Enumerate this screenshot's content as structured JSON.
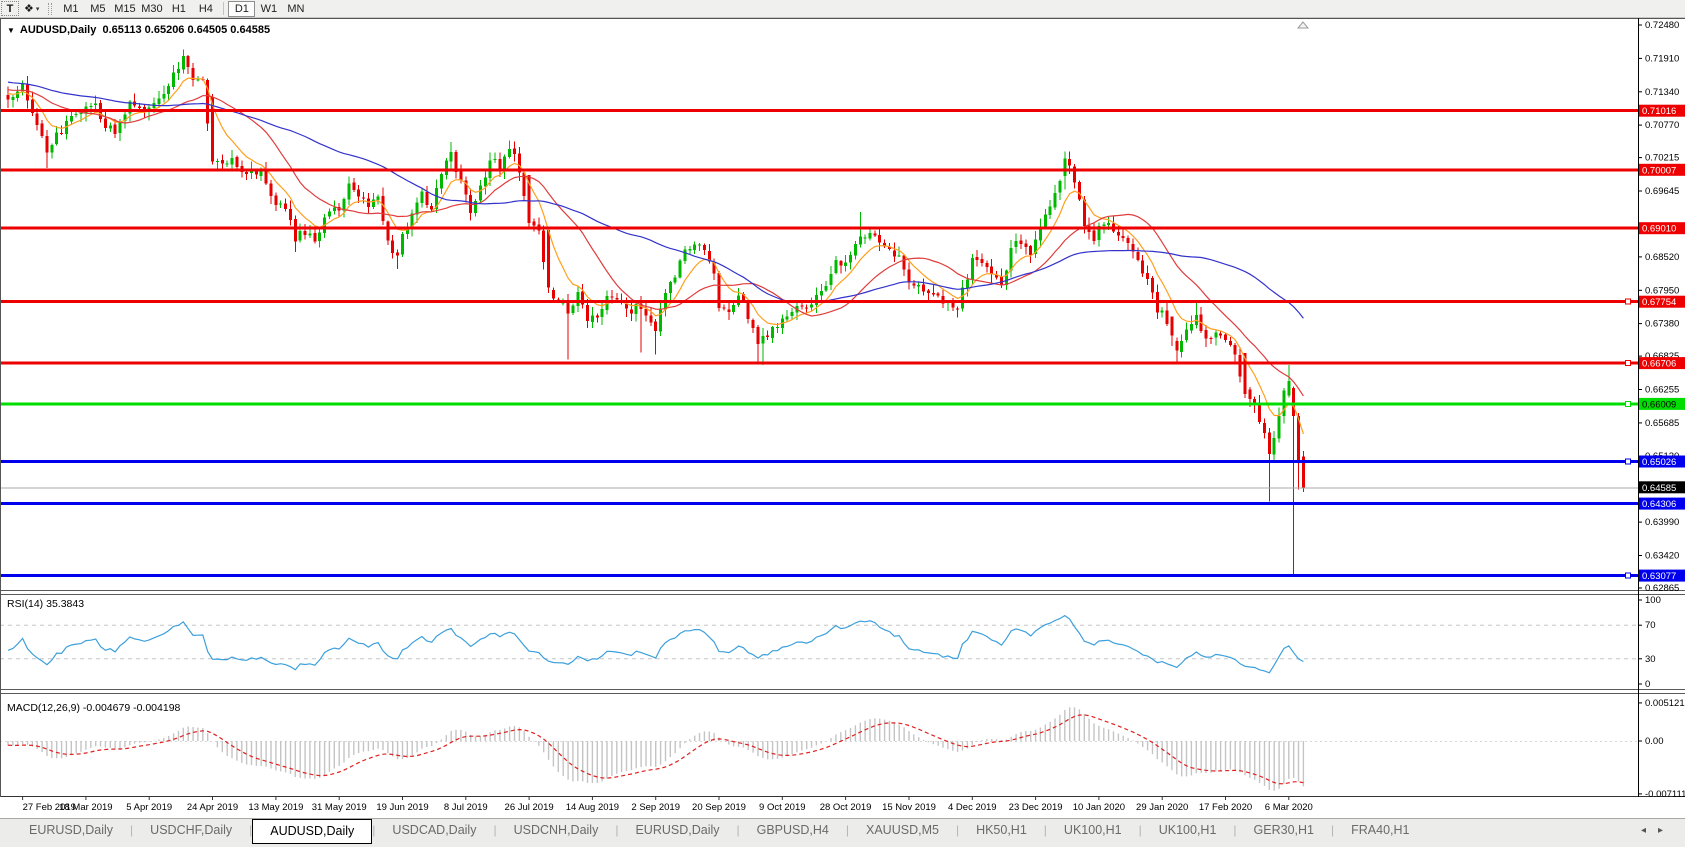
{
  "toolbar": {
    "text_tool": "T",
    "styler_icon": "❖",
    "caret": "▾",
    "timeframes": [
      {
        "label": "M1",
        "active": false
      },
      {
        "label": "M5",
        "active": false
      },
      {
        "label": "M15",
        "active": false
      },
      {
        "label": "M30",
        "active": false
      },
      {
        "label": "H1",
        "active": false
      },
      {
        "label": "H4",
        "active": false
      },
      {
        "label": "D1",
        "active": true
      },
      {
        "label": "W1",
        "active": false
      },
      {
        "label": "MN",
        "active": false
      }
    ]
  },
  "chart": {
    "symbol_line": {
      "dropdown": "▼",
      "title": "AUDUSD,Daily",
      "ohlc": "0.65113 0.65206 0.64505 0.64585"
    }
  },
  "chart_data": {
    "type": "candlestick",
    "symbol": "AUDUSD",
    "timeframe": "Daily",
    "current_bar": {
      "open": 0.65113,
      "high": 0.65206,
      "low": 0.64505,
      "close": 0.64585
    },
    "x_axis": {
      "labels": [
        "27 Feb 2019",
        "18 Mar 2019",
        "5 Apr 2019",
        "24 Apr 2019",
        "13 May 2019",
        "31 May 2019",
        "19 Jun 2019",
        "8 Jul 2019",
        "26 Jul 2019",
        "14 Aug 2019",
        "2 Sep 2019",
        "20 Sep 2019",
        "9 Oct 2019",
        "28 Oct 2019",
        "15 Nov 2019",
        "4 Dec 2019",
        "23 Dec 2019",
        "10 Jan 2020",
        "29 Jan 2020",
        "17 Feb 2020",
        "6 Mar 2020"
      ],
      "label_day_indices": [
        3,
        16,
        29,
        42,
        55,
        68,
        81,
        94,
        107,
        120,
        133,
        146,
        159,
        172,
        185,
        198,
        211,
        224,
        237,
        250,
        263
      ]
    },
    "y_axis": {
      "ticks": [
        "0.72480",
        "0.71910",
        "0.71340",
        "0.70770",
        "0.70215",
        "0.69645",
        "0.68520",
        "0.67950",
        "0.67380",
        "0.66825",
        "0.66255",
        "0.65685",
        "0.65120",
        "0.63990",
        "0.63420",
        "0.62865"
      ],
      "top_tick": 0.7248,
      "bottom_tick": 0.62865
    },
    "hlines": [
      {
        "price": 0.71016,
        "tag": "0.71016",
        "color": "#ee0000",
        "tag_text": "#ffffff",
        "width": 3,
        "handle": false
      },
      {
        "price": 0.70007,
        "tag": "0.70007",
        "color": "#ee0000",
        "tag_text": "#ffffff",
        "width": 3,
        "handle": false
      },
      {
        "price": 0.6901,
        "tag": "0.69010",
        "color": "#ee0000",
        "tag_text": "#ffffff",
        "width": 3,
        "handle": false
      },
      {
        "price": 0.67754,
        "tag": "0.67754",
        "color": "#ee0000",
        "tag_text": "#ffffff",
        "width": 3,
        "handle": true
      },
      {
        "price": 0.66706,
        "tag": "0.66706",
        "color": "#ee0000",
        "tag_text": "#ffffff",
        "width": 3,
        "handle": true
      },
      {
        "price": 0.66009,
        "tag": "0.66009",
        "color": "#00dd00",
        "tag_text": "#000000",
        "width": 3,
        "handle": true
      },
      {
        "price": 0.65026,
        "tag": "0.65026",
        "color": "#0000ee",
        "tag_text": "#ffffff",
        "width": 3,
        "handle": true
      },
      {
        "price": 0.64306,
        "tag": "0.64306",
        "color": "#0000ee",
        "tag_text": "#ffffff",
        "width": 3,
        "handle": false
      },
      {
        "price": 0.63077,
        "tag": "0.63077",
        "color": "#0000ee",
        "tag_text": "#ffffff",
        "width": 3,
        "handle": true
      }
    ],
    "bid_line": {
      "price": 0.64585,
      "tag": "0.64585",
      "color": "#a8a8a8",
      "tag_bg": "#000000",
      "tag_text": "#ffffff"
    },
    "candle_colors": {
      "up": "#00b800",
      "down": "#e60000"
    },
    "moving_averages": [
      {
        "name": "MA fast",
        "period": 8,
        "type": "ema",
        "color": "#ff9f1f"
      },
      {
        "name": "MA mid",
        "period": 20,
        "type": "sma",
        "color": "#e03c3c"
      },
      {
        "name": "MA slow",
        "period": 50,
        "type": "sma",
        "color": "#3333cc"
      }
    ],
    "close_path_anchors": [
      [
        0,
        0.7128
      ],
      [
        3,
        0.714
      ],
      [
        5,
        0.7098
      ],
      [
        8,
        0.703
      ],
      [
        10,
        0.7058
      ],
      [
        13,
        0.7092
      ],
      [
        16,
        0.7105
      ],
      [
        18,
        0.7112
      ],
      [
        20,
        0.7078
      ],
      [
        22,
        0.706
      ],
      [
        25,
        0.7115
      ],
      [
        27,
        0.71
      ],
      [
        29,
        0.7108
      ],
      [
        32,
        0.7128
      ],
      [
        34,
        0.7165
      ],
      [
        36,
        0.7188
      ],
      [
        38,
        0.7158
      ],
      [
        40,
        0.7148
      ],
      [
        42,
        0.7015
      ],
      [
        44,
        0.7008
      ],
      [
        46,
        0.7022
      ],
      [
        48,
        0.6995
      ],
      [
        51,
        0.7
      ],
      [
        53,
        0.6985
      ],
      [
        55,
        0.694
      ],
      [
        57,
        0.6935
      ],
      [
        59,
        0.6885
      ],
      [
        61,
        0.6892
      ],
      [
        63,
        0.6878
      ],
      [
        65,
        0.692
      ],
      [
        68,
        0.6933
      ],
      [
        70,
        0.6972
      ],
      [
        72,
        0.6962
      ],
      [
        74,
        0.693
      ],
      [
        76,
        0.6955
      ],
      [
        78,
        0.6875
      ],
      [
        80,
        0.6855
      ],
      [
        81,
        0.6885
      ],
      [
        83,
        0.692
      ],
      [
        85,
        0.6958
      ],
      [
        87,
        0.6938
      ],
      [
        89,
        0.6988
      ],
      [
        91,
        0.7032
      ],
      [
        93,
        0.6975
      ],
      [
        95,
        0.6928
      ],
      [
        97,
        0.6972
      ],
      [
        99,
        0.7018
      ],
      [
        101,
        0.7008
      ],
      [
        103,
        0.7038
      ],
      [
        105,
        0.7002
      ],
      [
        107,
        0.691
      ],
      [
        109,
        0.6898
      ],
      [
        111,
        0.68
      ],
      [
        113,
        0.6772
      ],
      [
        115,
        0.6762
      ],
      [
        117,
        0.6788
      ],
      [
        119,
        0.6748
      ],
      [
        121,
        0.6756
      ],
      [
        123,
        0.6782
      ],
      [
        125,
        0.6778
      ],
      [
        127,
        0.6758
      ],
      [
        129,
        0.6768
      ],
      [
        131,
        0.6752
      ],
      [
        133,
        0.6722
      ],
      [
        135,
        0.6792
      ],
      [
        137,
        0.6818
      ],
      [
        139,
        0.6862
      ],
      [
        141,
        0.688
      ],
      [
        143,
        0.6858
      ],
      [
        145,
        0.6822
      ],
      [
        146,
        0.677
      ],
      [
        148,
        0.6758
      ],
      [
        150,
        0.6788
      ],
      [
        152,
        0.6752
      ],
      [
        154,
        0.6705
      ],
      [
        156,
        0.6722
      ],
      [
        158,
        0.6738
      ],
      [
        160,
        0.6752
      ],
      [
        162,
        0.6775
      ],
      [
        164,
        0.6768
      ],
      [
        166,
        0.678
      ],
      [
        168,
        0.6808
      ],
      [
        170,
        0.6842
      ],
      [
        172,
        0.6838
      ],
      [
        174,
        0.6872
      ],
      [
        175,
        0.6892
      ],
      [
        177,
        0.6892
      ],
      [
        179,
        0.6882
      ],
      [
        181,
        0.686
      ],
      [
        183,
        0.6855
      ],
      [
        185,
        0.6815
      ],
      [
        187,
        0.6802
      ],
      [
        189,
        0.6788
      ],
      [
        191,
        0.6785
      ],
      [
        193,
        0.6772
      ],
      [
        195,
        0.6765
      ],
      [
        197,
        0.682
      ],
      [
        198,
        0.6848
      ],
      [
        200,
        0.684
      ],
      [
        202,
        0.683
      ],
      [
        204,
        0.6808
      ],
      [
        206,
        0.6862
      ],
      [
        208,
        0.6882
      ],
      [
        210,
        0.685
      ],
      [
        212,
        0.6902
      ],
      [
        214,
        0.694
      ],
      [
        216,
        0.6988
      ],
      [
        217,
        0.702
      ],
      [
        219,
        0.6985
      ],
      [
        221,
        0.6905
      ],
      [
        223,
        0.6875
      ],
      [
        224,
        0.69
      ],
      [
        226,
        0.6905
      ],
      [
        228,
        0.6888
      ],
      [
        230,
        0.687
      ],
      [
        232,
        0.6845
      ],
      [
        234,
        0.6812
      ],
      [
        236,
        0.6762
      ],
      [
        237,
        0.6755
      ],
      [
        239,
        0.6718
      ],
      [
        240,
        0.6692
      ],
      [
        242,
        0.6722
      ],
      [
        244,
        0.6745
      ],
      [
        246,
        0.6708
      ],
      [
        248,
        0.6725
      ],
      [
        250,
        0.671
      ],
      [
        252,
        0.6688
      ],
      [
        254,
        0.6618
      ],
      [
        256,
        0.6598
      ],
      [
        258,
        0.6552
      ],
      [
        259,
        0.6515
      ],
      [
        260,
        0.654
      ],
      [
        261,
        0.6585
      ],
      [
        262,
        0.6622
      ],
      [
        263,
        0.664
      ],
      [
        264,
        0.658
      ],
      [
        265,
        0.6502
      ],
      [
        266,
        0.64585
      ]
    ],
    "special_candles": [
      {
        "d": 8,
        "l": 0.70035
      },
      {
        "d": 36,
        "h": 0.7206
      },
      {
        "d": 42,
        "o": 0.7125,
        "h": 0.713,
        "l": 0.701,
        "c": 0.7015
      },
      {
        "d": 59,
        "l": 0.68601
      },
      {
        "d": 80,
        "l": 0.68316
      },
      {
        "d": 91,
        "h": 0.70478
      },
      {
        "d": 107,
        "o": 0.6992,
        "c": 0.691
      },
      {
        "d": 111,
        "o": 0.6898,
        "h": 0.69,
        "l": 0.679,
        "c": 0.68
      },
      {
        "d": 115,
        "l": 0.66766
      },
      {
        "d": 130,
        "l": 0.6689
      },
      {
        "d": 133,
        "l": 0.6685
      },
      {
        "d": 154,
        "l": 0.6671
      },
      {
        "d": 155,
        "l": 0.66672
      },
      {
        "d": 175,
        "h": 0.6929
      },
      {
        "d": 217,
        "o": 0.699,
        "h": 0.70317,
        "c": 0.702
      },
      {
        "d": 239,
        "o": 0.675,
        "c": 0.6718
      },
      {
        "d": 240,
        "l": 0.667,
        "c": 0.6692
      },
      {
        "d": 244,
        "h": 0.6775
      },
      {
        "d": 254,
        "o": 0.6688,
        "l": 0.6611,
        "c": 0.6618
      },
      {
        "d": 256,
        "l": 0.6585
      },
      {
        "d": 258,
        "l": 0.6542
      },
      {
        "d": 259,
        "o": 0.6552,
        "h": 0.656,
        "l": 0.64341,
        "c": 0.6515
      },
      {
        "d": 263,
        "o": 0.6615,
        "h": 0.6667,
        "c": 0.664
      },
      {
        "d": 264,
        "o": 0.6628,
        "h": 0.6631,
        "l": 0.63077,
        "c": 0.658
      },
      {
        "d": 265,
        "o": 0.658,
        "h": 0.6585,
        "l": 0.6455,
        "c": 0.6502
      },
      {
        "d": 266,
        "o": 0.65113,
        "h": 0.65206,
        "l": 0.64505,
        "c": 0.64585
      }
    ],
    "indicators": {
      "rsi": {
        "label": "RSI(14)",
        "value": "35.3843",
        "period": 14,
        "levels": [
          70,
          30
        ],
        "axis_ticks": [
          {
            "v": 100,
            "t": "100"
          },
          {
            "v": 70,
            "t": "70"
          },
          {
            "v": 30,
            "t": "30"
          },
          {
            "v": 0,
            "t": "0"
          }
        ],
        "line_color": "#3ca0dc"
      },
      "macd": {
        "label": "MACD(12,26,9)",
        "values": "-0.004679 -0.004198",
        "fast": 12,
        "slow": 26,
        "signal": 9,
        "axis_ticks": [
          {
            "v": 0.005121,
            "t": "0.005121"
          },
          {
            "v": 0,
            "t": "0.00"
          },
          {
            "v": -0.007111,
            "t": "-0.007111"
          }
        ],
        "histogram_color": "#c4c4c4",
        "signal_color": "#e02020"
      }
    }
  },
  "tabbar": {
    "divider": "|",
    "arrows": {
      "left": "◂",
      "right": "▸"
    },
    "items": [
      {
        "label": "EURUSD,Daily",
        "active": false
      },
      {
        "label": "USDCHF,Daily",
        "active": false
      },
      {
        "label": "AUDUSD,Daily",
        "active": true
      },
      {
        "label": "USDCAD,Daily",
        "active": false
      },
      {
        "label": "USDCNH,Daily",
        "active": false
      },
      {
        "label": "EURUSD,Daily",
        "active": false
      },
      {
        "label": "GBPUSD,H4",
        "active": false
      },
      {
        "label": "XAUUSD,M5",
        "active": false
      },
      {
        "label": "HK50,H1",
        "active": false
      },
      {
        "label": "UK100,H1",
        "active": false
      },
      {
        "label": "UK100,H1",
        "active": false
      },
      {
        "label": "GER30,H1",
        "active": false
      },
      {
        "label": "FRA40,H1",
        "active": false
      }
    ]
  }
}
